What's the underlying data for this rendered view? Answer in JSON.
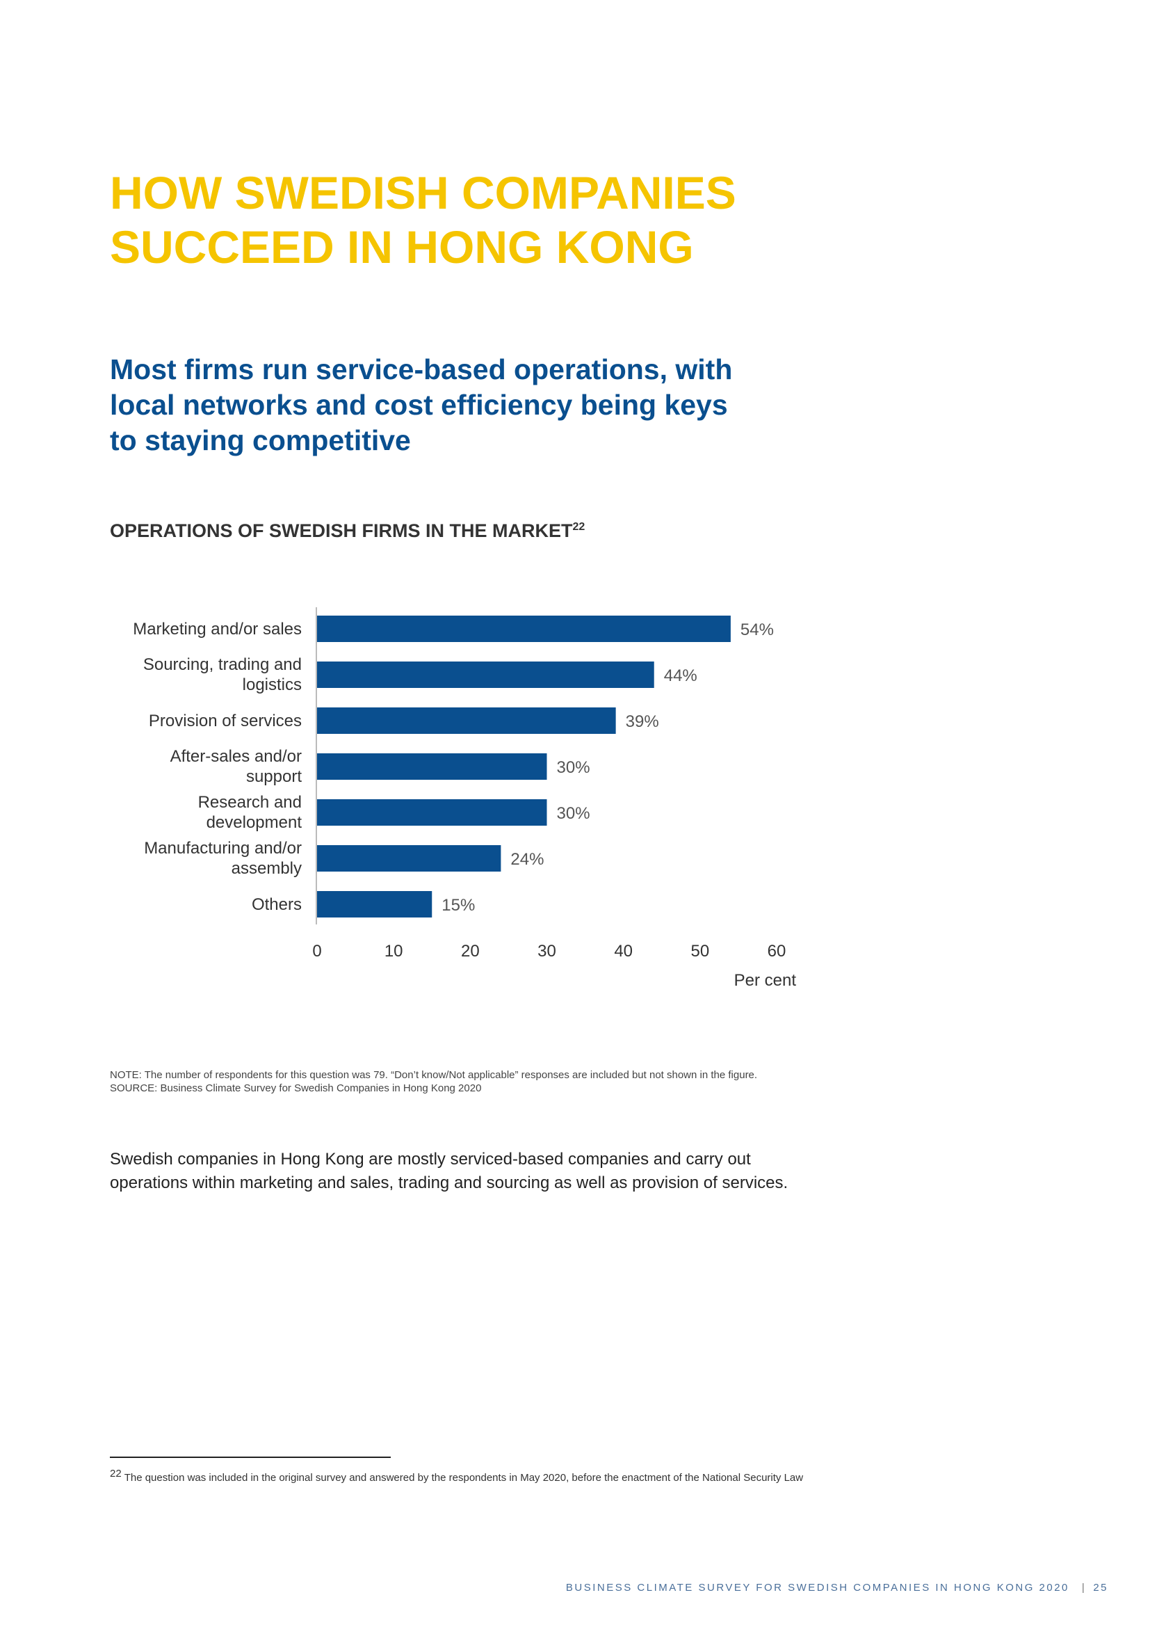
{
  "title_lines": [
    "HOW SWEDISH COMPANIES",
    "SUCCEED IN HONG KONG"
  ],
  "subtitle_lines": [
    "Most firms run service-based operations, with",
    "local networks and cost efficiency being keys",
    "to staying competitive"
  ],
  "chart_heading": {
    "text": "OPERATIONS OF SWEDISH FIRMS IN THE MARKET",
    "ref": "22"
  },
  "chart_data": {
    "type": "bar",
    "orientation": "horizontal",
    "title": "OPERATIONS OF SWEDISH FIRMS IN THE MARKET",
    "categories": [
      [
        "Marketing and/or sales"
      ],
      [
        "Sourcing, trading and",
        "logistics"
      ],
      [
        "Provision of services"
      ],
      [
        "After-sales and/or",
        "support"
      ],
      [
        "Research and",
        "development"
      ],
      [
        "Manufacturing and/or",
        "assembly"
      ],
      [
        "Others"
      ]
    ],
    "values": [
      54,
      44,
      39,
      30,
      30,
      24,
      15
    ],
    "data_labels": [
      "54%",
      "44%",
      "39%",
      "30%",
      "30%",
      "24%",
      "15%"
    ],
    "xlim": [
      0,
      60
    ],
    "xticks": [
      "0",
      "10",
      "20",
      "30",
      "40",
      "50",
      "60"
    ],
    "xlabel": "Per cent",
    "ylabel": "",
    "grid": false,
    "legend": "none",
    "bar_color": "#0a4f8f"
  },
  "note": {
    "note_text": "NOTE: The number of respondents for this question was 79. “Don’t know/Not applicable” responses are included but not shown in the figure.",
    "source_text": "SOURCE: Business Climate Survey for Swedish Companies in Hong Kong 2020"
  },
  "body_text": "Swedish companies in Hong Kong are mostly serviced-based companies and carry out operations within marketing and sales, trading and sourcing as well as provision of services.",
  "footnote": {
    "number": "22",
    "text": "The question was included in the original survey and answered by the respondents in May 2020, before the enactment of the National Security Law"
  },
  "footer": {
    "text": "BUSINESS CLIMATE SURVEY FOR SWEDISH COMPANIES IN HONG KONG 2020",
    "separator": "|",
    "page_number": "25"
  },
  "colors": {
    "title": "#f5c400",
    "subtitle": "#0a4f8f",
    "bar": "#0a4f8f"
  }
}
